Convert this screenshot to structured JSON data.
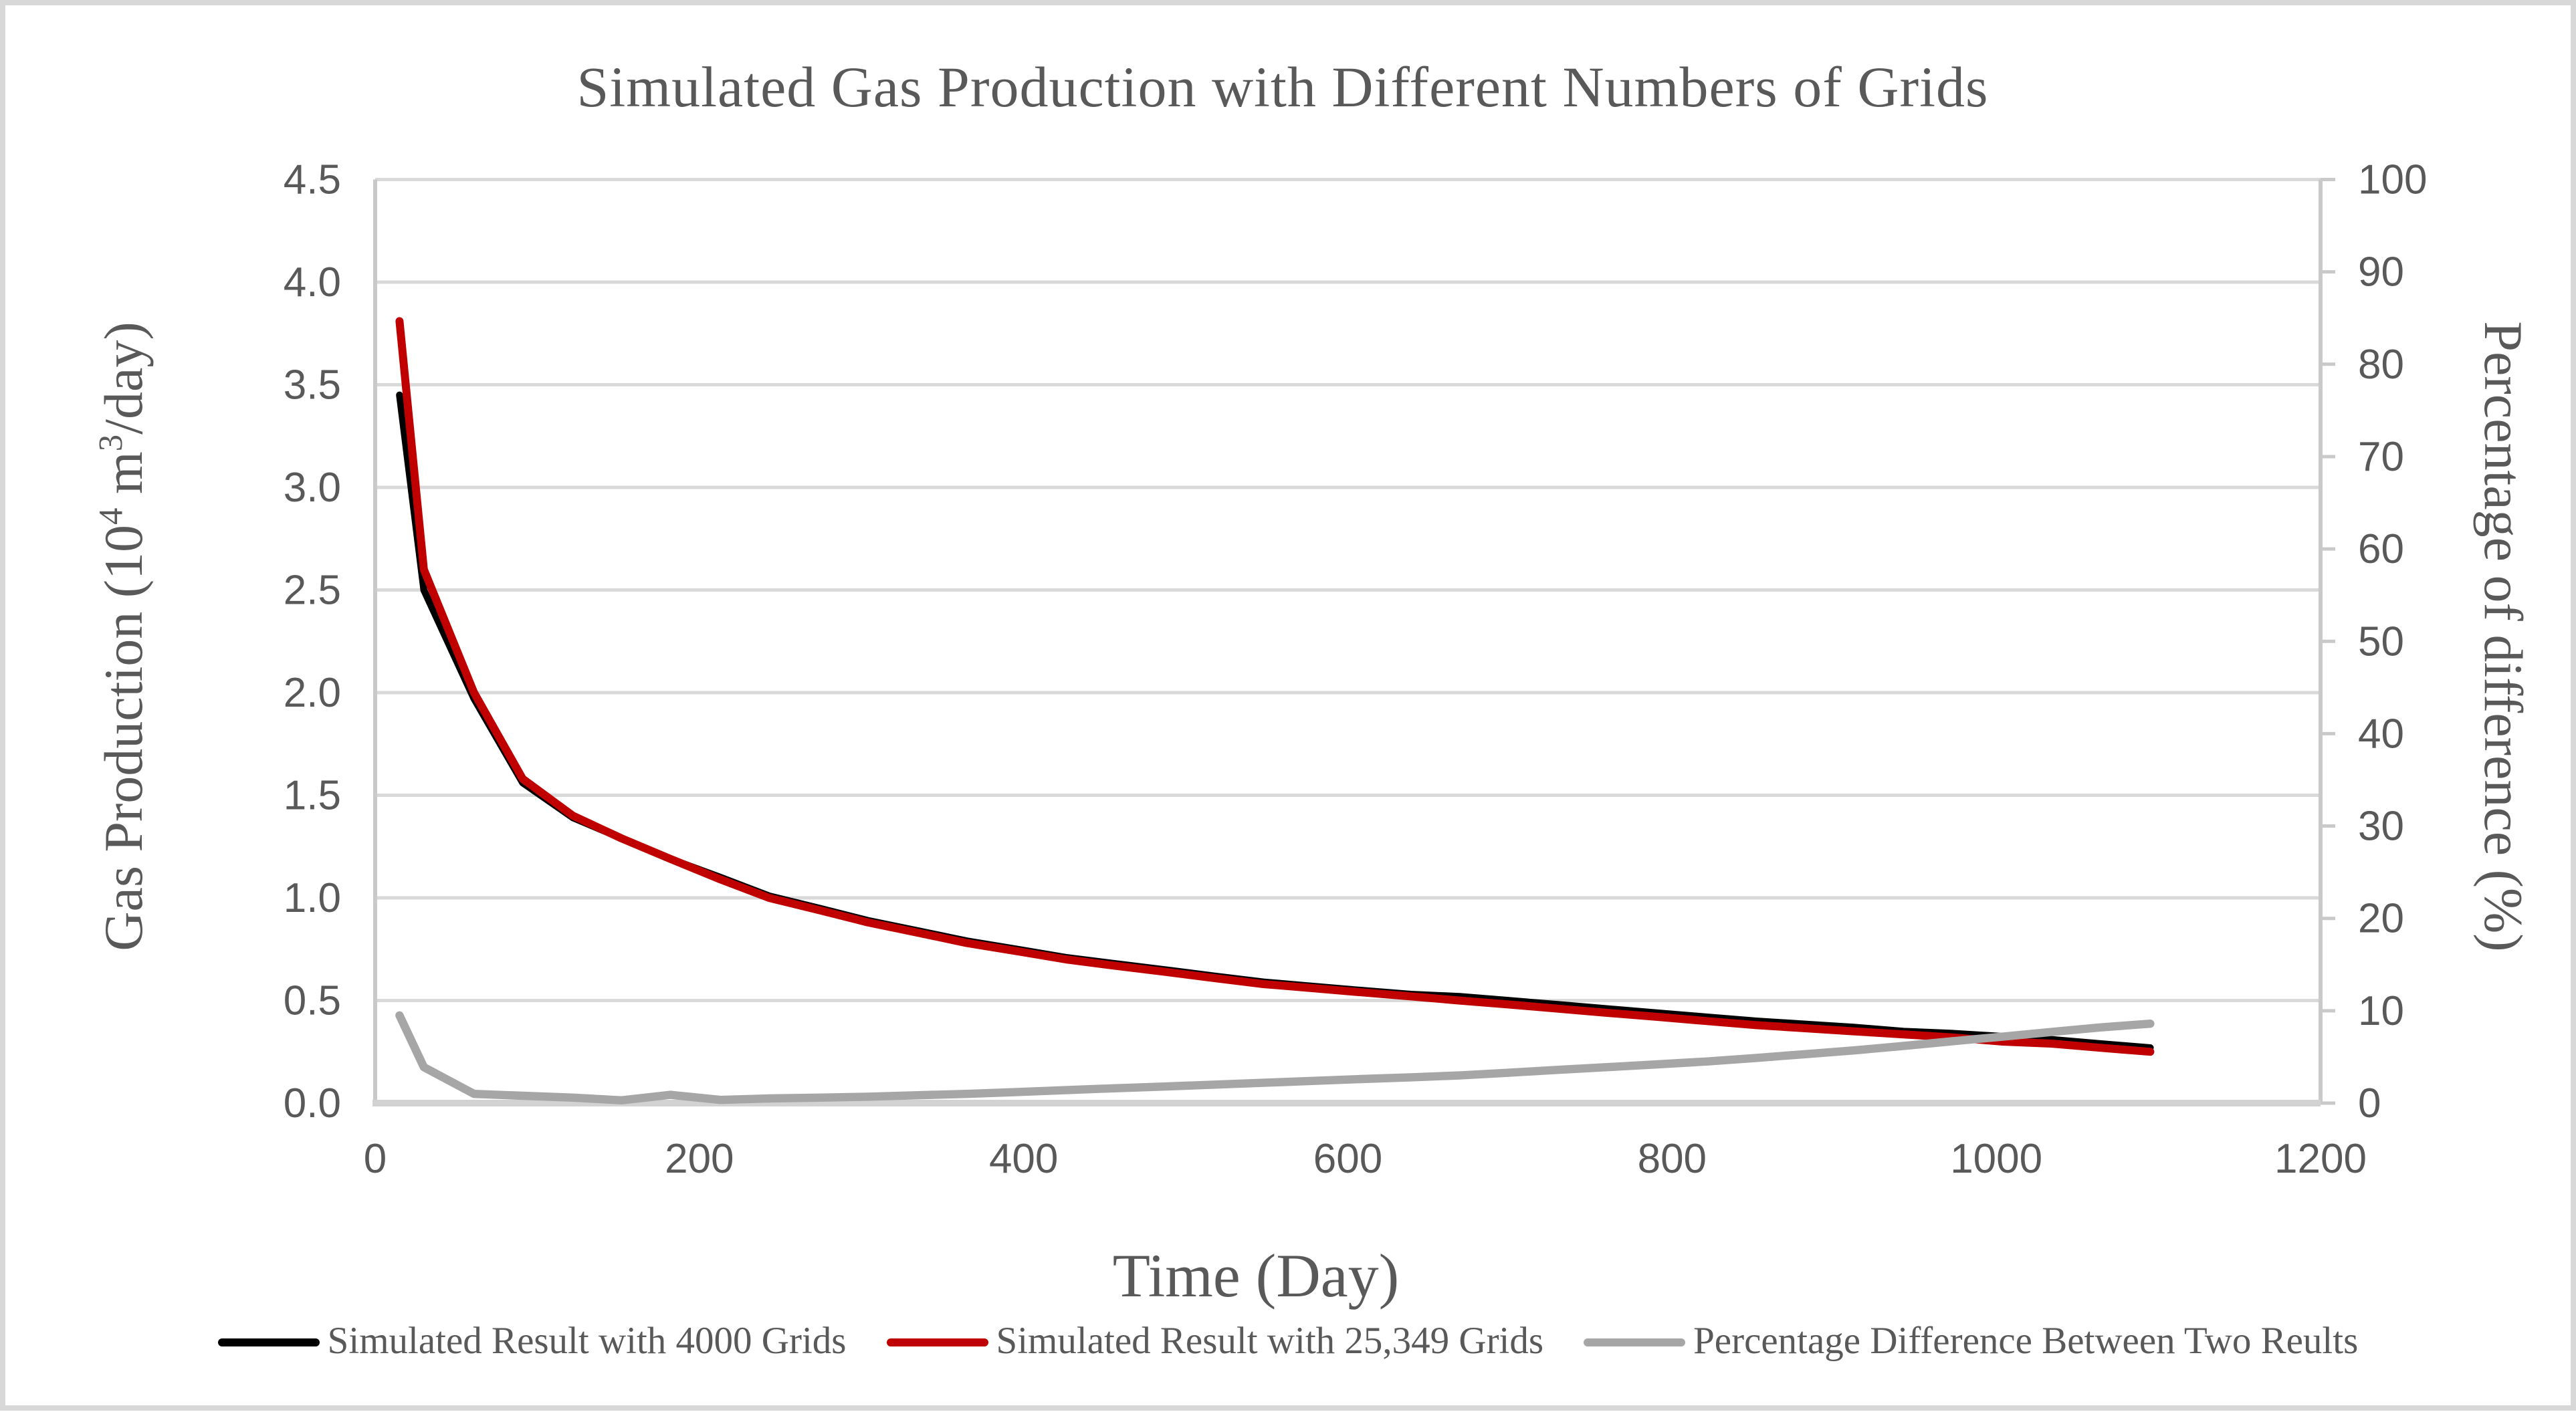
{
  "chart_data": {
    "type": "line",
    "title": "Simulated Gas Production with Different Numbers of Grids",
    "xlabel": "Time (Day)",
    "ylabel_left": {
      "prefix": "Gas Production (10",
      "sup1": "4",
      "mid": " m",
      "sup2": "3",
      "suffix": "/day)"
    },
    "ylabel_right": "Percentage of difference (%)",
    "x_range": [
      0,
      1200
    ],
    "x_ticks": [
      0,
      200,
      400,
      600,
      800,
      1000,
      1200
    ],
    "y_left_range": [
      0,
      4.5
    ],
    "y_left_ticks": [
      "0.0",
      "0.5",
      "1.0",
      "1.5",
      "2.0",
      "2.5",
      "3.0",
      "3.5",
      "4.0",
      "4.5"
    ],
    "y_right_range": [
      0,
      100
    ],
    "y_right_ticks": [
      "0",
      "10",
      "20",
      "30",
      "40",
      "50",
      "60",
      "70",
      "80",
      "90",
      "100"
    ],
    "grid": "horizontal-only",
    "legend_position": "bottom",
    "colors": {
      "grid": "#d9d9d9",
      "axis": "#c9c9c9",
      "bottom_axis": "#d2d2d2",
      "text": "#595959"
    },
    "x_days": [
      15,
      30,
      61,
      91,
      122,
      152,
      182,
      213,
      243,
      274,
      304,
      335,
      365,
      396,
      426,
      456,
      487,
      517,
      548,
      578,
      608,
      639,
      669,
      700,
      730,
      760,
      791,
      821,
      852,
      882,
      912,
      943,
      973,
      1004,
      1034,
      1064,
      1095
    ],
    "series": [
      {
        "name": "Simulated Result with 4000 Grids",
        "color": "#000000",
        "axis": "left",
        "values": [
          3.45,
          2.5,
          1.97,
          1.56,
          1.39,
          1.29,
          1.19,
          1.1,
          1.01,
          0.95,
          0.89,
          0.84,
          0.79,
          0.75,
          0.71,
          0.68,
          0.65,
          0.62,
          0.59,
          0.57,
          0.55,
          0.53,
          0.52,
          0.5,
          0.48,
          0.46,
          0.44,
          0.42,
          0.4,
          0.385,
          0.37,
          0.35,
          0.34,
          0.325,
          0.31,
          0.29,
          0.27
        ]
      },
      {
        "name": "Simulated Result with 25,349 Grids",
        "color": "#c00000",
        "axis": "left",
        "values": [
          3.81,
          2.6,
          2.0,
          1.58,
          1.4,
          1.29,
          1.19,
          1.09,
          1.0,
          0.94,
          0.88,
          0.83,
          0.78,
          0.74,
          0.7,
          0.67,
          0.64,
          0.61,
          0.58,
          0.56,
          0.54,
          0.52,
          0.5,
          0.48,
          0.46,
          0.44,
          0.42,
          0.4,
          0.38,
          0.365,
          0.35,
          0.335,
          0.32,
          0.3,
          0.29,
          0.27,
          0.25
        ]
      },
      {
        "name": "Percentage Difference Between Two Reults",
        "color": "#a6a6a6",
        "axis": "right",
        "values": [
          9.5,
          3.9,
          1.0,
          0.8,
          0.6,
          0.3,
          0.9,
          0.35,
          0.5,
          0.6,
          0.7,
          0.85,
          1.0,
          1.2,
          1.4,
          1.6,
          1.8,
          2.0,
          2.2,
          2.4,
          2.6,
          2.8,
          3.0,
          3.3,
          3.6,
          3.9,
          4.2,
          4.5,
          4.9,
          5.3,
          5.7,
          6.2,
          6.7,
          7.2,
          7.7,
          8.2,
          8.6
        ]
      }
    ]
  }
}
